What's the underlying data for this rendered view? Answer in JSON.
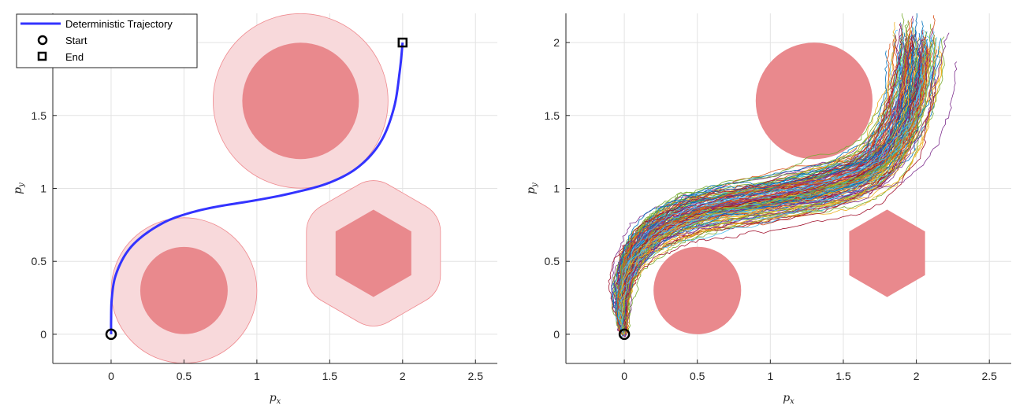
{
  "chart_data": [
    {
      "type": "line",
      "xlabel": "p_x",
      "ylabel": "p_y",
      "xlim": [
        -0.4,
        2.65
      ],
      "ylim": [
        -0.2,
        2.2
      ],
      "xticks": [
        "0",
        "0.5",
        "1",
        "1.5",
        "2",
        "2.5"
      ],
      "yticks": [
        "0",
        "0.5",
        "1",
        "1.5",
        "2"
      ],
      "grid": true,
      "legend": {
        "placement": "top-left",
        "entries": [
          "Deterministic Trajectory",
          "Start",
          "End"
        ]
      },
      "obstacles": [
        {
          "shape": "circle",
          "center": [
            0.5,
            0.3
          ],
          "radius": 0.3,
          "inflated_radius": 0.5
        },
        {
          "shape": "circle",
          "center": [
            1.3,
            1.6
          ],
          "radius": 0.4,
          "inflated_radius": 0.6
        },
        {
          "shape": "hexagon",
          "center": [
            1.8,
            0.555
          ],
          "radius": 0.3,
          "inflation": 0.2
        }
      ],
      "series": [
        {
          "name": "Deterministic Trajectory",
          "color": "#3333ff",
          "points": [
            [
              0,
              0
            ],
            [
              0,
              0.1
            ],
            [
              0.005,
              0.25
            ],
            [
              0.03,
              0.4
            ],
            [
              0.1,
              0.55
            ],
            [
              0.2,
              0.66
            ],
            [
              0.35,
              0.76
            ],
            [
              0.5,
              0.82
            ],
            [
              0.7,
              0.87
            ],
            [
              1.0,
              0.92
            ],
            [
              1.25,
              0.97
            ],
            [
              1.5,
              1.04
            ],
            [
              1.7,
              1.15
            ],
            [
              1.85,
              1.32
            ],
            [
              1.94,
              1.55
            ],
            [
              1.98,
              1.8
            ],
            [
              2,
              2
            ]
          ]
        }
      ],
      "start": [
        0,
        0
      ],
      "end": [
        2,
        2
      ]
    },
    {
      "type": "line",
      "xlabel": "p_x",
      "ylabel": "p_y",
      "xlim": [
        -0.4,
        2.65
      ],
      "ylim": [
        -0.2,
        2.2
      ],
      "xticks": [
        "0",
        "0.5",
        "1",
        "1.5",
        "2",
        "2.5"
      ],
      "yticks": [
        "0",
        "0.5",
        "1",
        "1.5",
        "2"
      ],
      "grid": true,
      "obstacles": [
        {
          "shape": "circle",
          "center": [
            0.5,
            0.3
          ],
          "radius": 0.3
        },
        {
          "shape": "circle",
          "center": [
            1.3,
            1.6
          ],
          "radius": 0.4
        },
        {
          "shape": "hexagon",
          "center": [
            1.8,
            0.555
          ],
          "radius": 0.3
        }
      ],
      "sample_trajectories": {
        "mean_path": [
          [
            0,
            0
          ],
          [
            -0.02,
            0.2
          ],
          [
            0.02,
            0.45
          ],
          [
            0.15,
            0.65
          ],
          [
            0.35,
            0.78
          ],
          [
            0.6,
            0.86
          ],
          [
            1.0,
            0.93
          ],
          [
            1.4,
            1.02
          ],
          [
            1.7,
            1.15
          ],
          [
            1.88,
            1.4
          ],
          [
            1.97,
            1.7
          ],
          [
            2.0,
            2.0
          ]
        ],
        "colors": [
          "#0072bd",
          "#d95319",
          "#edb120",
          "#7e2f8e",
          "#77ac30",
          "#4dbeee",
          "#a2142f"
        ]
      },
      "start": [
        0,
        0
      ]
    }
  ],
  "colors": {
    "obstacle": "#e9898d",
    "inflated": "#f8d9db",
    "inflated_edge": "#ef8a8f",
    "grid": "#e3e3e3"
  }
}
